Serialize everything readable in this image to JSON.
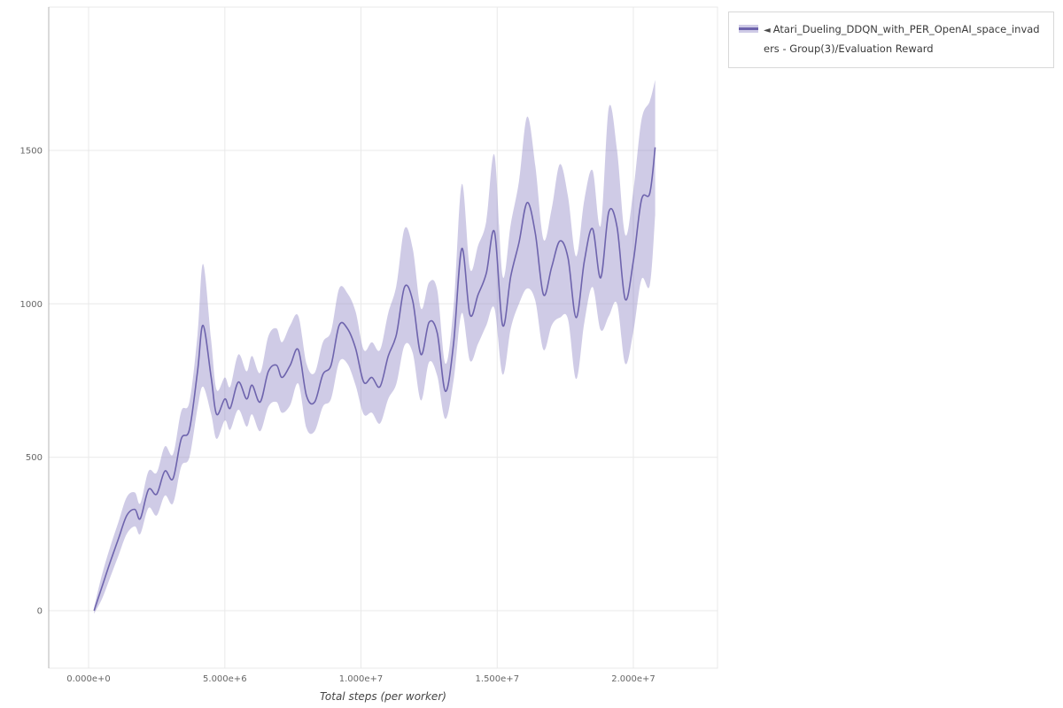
{
  "style": {
    "line_color": "#6e64ad",
    "band_color": "#8d84c4",
    "band_opacity": 0.42,
    "grid_color": "#e9e9e9",
    "axis_color": "#b5b5b5",
    "tick_text_color": "#666666",
    "background": "#ffffff"
  },
  "legend": {
    "collapse_icon": "◄"
  },
  "chart_data": {
    "type": "line",
    "title": "",
    "xlabel": "Total steps (per worker)",
    "ylabel": "",
    "x_range": [
      0,
      20800000
    ],
    "ylim": [
      -190,
      1960
    ],
    "grid": true,
    "legend_position": "top-right",
    "x_ticks": [
      {
        "value": 0,
        "label": "0.000e+0"
      },
      {
        "value": 5000000,
        "label": "5.000e+6"
      },
      {
        "value": 10000000,
        "label": "1.000e+7"
      },
      {
        "value": 15000000,
        "label": "1.500e+7"
      },
      {
        "value": 20000000,
        "label": "2.000e+7"
      }
    ],
    "y_ticks": [
      {
        "value": 0,
        "label": "0"
      },
      {
        "value": 500,
        "label": "500"
      },
      {
        "value": 1000,
        "label": "1000"
      },
      {
        "value": 1500,
        "label": "1500"
      }
    ],
    "series": [
      {
        "name": "Atari_Dueling_DDQN_with_PER_OpenAI_space_invaders - Group(3)/Evaluation Reward",
        "x": [
          200000,
          500000,
          800000,
          1100000,
          1400000,
          1700000,
          1900000,
          2200000,
          2500000,
          2800000,
          3100000,
          3400000,
          3700000,
          4000000,
          4200000,
          4500000,
          4700000,
          5000000,
          5200000,
          5500000,
          5800000,
          6000000,
          6300000,
          6600000,
          6900000,
          7100000,
          7400000,
          7700000,
          8000000,
          8300000,
          8600000,
          8900000,
          9200000,
          9500000,
          9800000,
          10100000,
          10400000,
          10700000,
          11000000,
          11300000,
          11600000,
          11900000,
          12200000,
          12500000,
          12800000,
          13100000,
          13400000,
          13700000,
          14000000,
          14300000,
          14600000,
          14900000,
          15200000,
          15500000,
          15800000,
          16100000,
          16400000,
          16700000,
          17000000,
          17300000,
          17600000,
          17900000,
          18200000,
          18500000,
          18800000,
          19100000,
          19400000,
          19700000,
          20000000,
          20300000,
          20600000,
          20800000
        ],
        "mean": [
          0,
          80,
          160,
          235,
          310,
          330,
          300,
          395,
          380,
          455,
          430,
          560,
          590,
          780,
          930,
          760,
          640,
          690,
          660,
          745,
          690,
          735,
          680,
          780,
          800,
          760,
          800,
          850,
          700,
          680,
          770,
          800,
          930,
          920,
          855,
          745,
          760,
          730,
          830,
          900,
          1055,
          1010,
          835,
          940,
          905,
          715,
          870,
          1180,
          965,
          1030,
          1100,
          1235,
          930,
          1090,
          1200,
          1330,
          1230,
          1030,
          1120,
          1205,
          1150,
          955,
          1140,
          1245,
          1085,
          1300,
          1250,
          1015,
          1140,
          1340,
          1360,
          1510
        ],
        "lower": [
          -10,
          40,
          110,
          180,
          250,
          275,
          250,
          335,
          310,
          375,
          350,
          470,
          500,
          660,
          730,
          640,
          560,
          620,
          590,
          655,
          600,
          640,
          585,
          665,
          680,
          645,
          670,
          740,
          595,
          585,
          665,
          690,
          810,
          805,
          735,
          640,
          645,
          610,
          690,
          740,
          865,
          840,
          685,
          810,
          765,
          625,
          750,
          970,
          815,
          870,
          930,
          985,
          770,
          920,
          1000,
          1050,
          1010,
          850,
          930,
          955,
          950,
          755,
          940,
          1055,
          915,
          960,
          1000,
          805,
          910,
          1080,
          1060,
          1290
        ],
        "upper": [
          10,
          120,
          210,
          290,
          370,
          385,
          350,
          455,
          450,
          535,
          510,
          650,
          680,
          900,
          1130,
          880,
          720,
          760,
          730,
          835,
          780,
          830,
          775,
          895,
          920,
          875,
          930,
          960,
          805,
          775,
          875,
          910,
          1050,
          1035,
          975,
          850,
          875,
          850,
          970,
          1060,
          1245,
          1180,
          985,
          1070,
          1045,
          805,
          990,
          1390,
          1115,
          1190,
          1270,
          1485,
          1090,
          1260,
          1400,
          1610,
          1450,
          1210,
          1310,
          1455,
          1350,
          1155,
          1340,
          1435,
          1255,
          1640,
          1500,
          1225,
          1370,
          1600,
          1660,
          1730
        ]
      }
    ]
  }
}
